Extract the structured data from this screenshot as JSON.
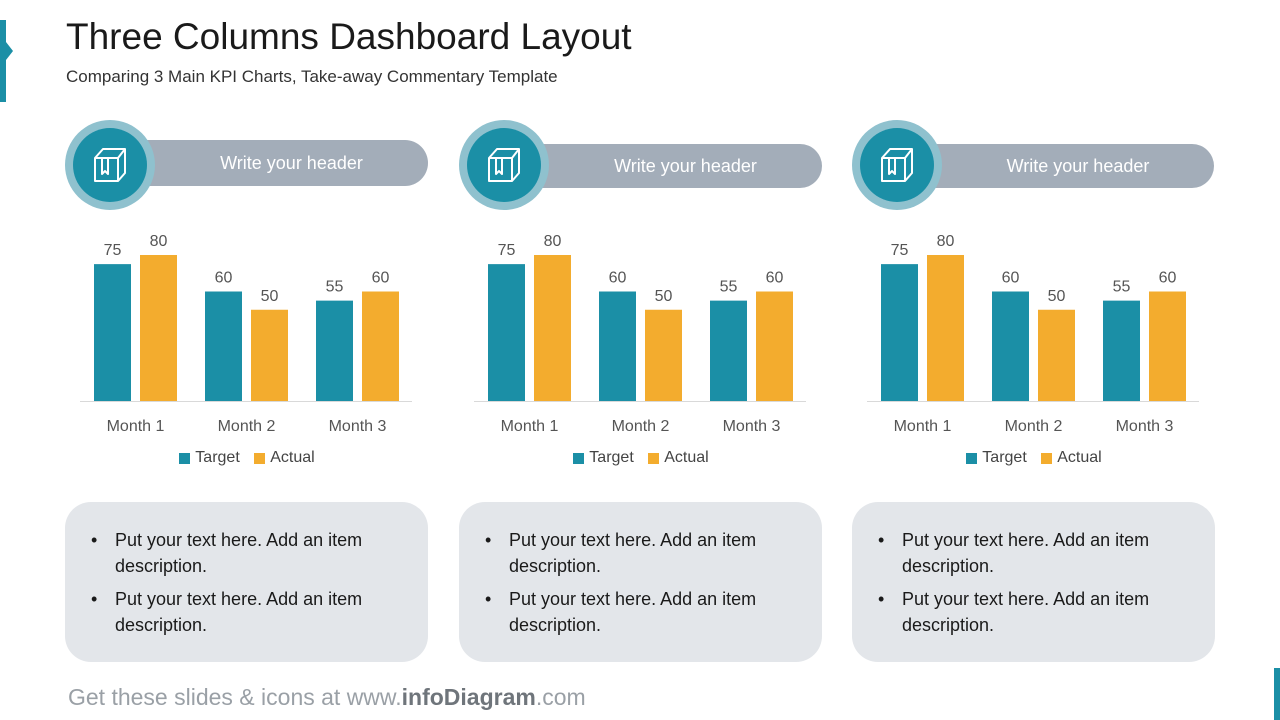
{
  "header": {
    "title": "Three Columns Dashboard Layout",
    "subtitle": "Comparing 3 Main KPI Charts, Take-away Commentary Template"
  },
  "colors": {
    "target": "#1B8FA6",
    "actual": "#F3AC2E",
    "pill": "#A3ADB9",
    "note_bg": "#E3E6EA"
  },
  "columns": [
    {
      "header": "Write your header",
      "icon": "box-icon",
      "bullets": [
        "Put your text here. Add an item description.",
        "Put your text here. Add an item description."
      ]
    },
    {
      "header": "Write your header",
      "icon": "box-icon",
      "bullets": [
        "Put your text here. Add an item description.",
        "Put your text here. Add an item description."
      ]
    },
    {
      "header": "Write your header",
      "icon": "box-icon",
      "bullets": [
        "Put your text here. Add an item description.",
        "Put your text here. Add an item description."
      ]
    }
  ],
  "chart_data": [
    {
      "type": "bar",
      "categories": [
        "Month 1",
        "Month 2",
        "Month 3"
      ],
      "series": [
        {
          "name": "Target",
          "values": [
            75,
            60,
            55
          ]
        },
        {
          "name": "Actual",
          "values": [
            80,
            50,
            60
          ]
        }
      ],
      "ylim": [
        0,
        80
      ],
      "legend": "bottom",
      "grid": false
    },
    {
      "type": "bar",
      "categories": [
        "Month 1",
        "Month 2",
        "Month 3"
      ],
      "series": [
        {
          "name": "Target",
          "values": [
            75,
            60,
            55
          ]
        },
        {
          "name": "Actual",
          "values": [
            80,
            50,
            60
          ]
        }
      ],
      "ylim": [
        0,
        80
      ],
      "legend": "bottom",
      "grid": false
    },
    {
      "type": "bar",
      "categories": [
        "Month 1",
        "Month 2",
        "Month 3"
      ],
      "series": [
        {
          "name": "Target",
          "values": [
            75,
            60,
            55
          ]
        },
        {
          "name": "Actual",
          "values": [
            80,
            50,
            60
          ]
        }
      ],
      "ylim": [
        0,
        80
      ],
      "legend": "bottom",
      "grid": false
    }
  ],
  "footer": {
    "prefix": "Get these slides & icons at www.",
    "brand": "infoDiagram",
    "suffix": ".com"
  }
}
